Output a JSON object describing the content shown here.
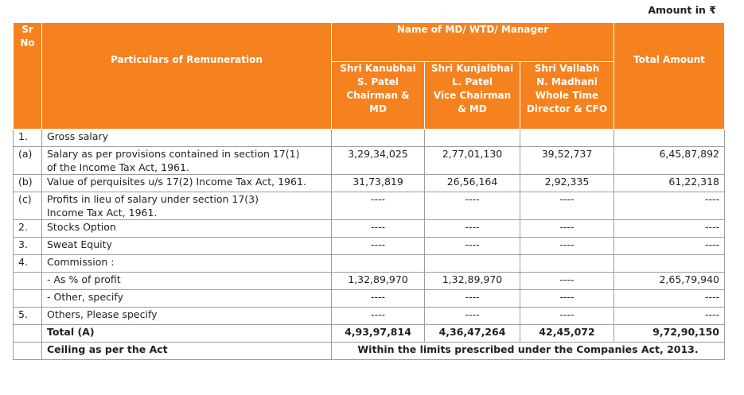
{
  "amount_note": "Amount in ₹",
  "header": {
    "sr_no": "Sr\nNo",
    "particulars": "Particulars of Remuneration",
    "group": "Name of MD/  WTD/ Manager",
    "total": "Total Amount",
    "names": [
      "Shri Kanubhai\nS. Patel\nChairman & MD",
      "Shri Kunjalbhai\nL. Patel\nVice Chairman\n& MD",
      "Shri Vallabh\nN. Madhani\nWhole Time\nDirector & CFO"
    ]
  },
  "rows": [
    {
      "sr": "1.",
      "particular": "Gross salary",
      "v1": "",
      "v2": "",
      "v3": "",
      "total": ""
    },
    {
      "sr": "(a)",
      "particular": "Salary as per provisions contained in section 17(1)\nof the Income Tax Act, 1961.",
      "v1": "3,29,34,025",
      "v2": "2,77,01,130",
      "v3": "39,52,737",
      "total": "6,45,87,892"
    },
    {
      "sr": "(b)",
      "particular": "Value of perquisites u/s 17(2) Income Tax Act, 1961.",
      "v1": "31,73,819",
      "v2": "26,56,164",
      "v3": "2,92,335",
      "total": "61,22,318"
    },
    {
      "sr": "(c)",
      "particular": "Profits in lieu of salary under section 17(3)\nIncome Tax Act, 1961.",
      "v1": "----",
      "v2": "----",
      "v3": "----",
      "total": "----"
    },
    {
      "sr": "2.",
      "particular": "Stocks  Option",
      "v1": "----",
      "v2": "----",
      "v3": "----",
      "total": "----"
    },
    {
      "sr": "3.",
      "particular": "Sweat Equity",
      "v1": "----",
      "v2": "----",
      "v3": "----",
      "total": "----"
    },
    {
      "sr": "4.",
      "particular": "Commission :",
      "v1": "",
      "v2": "",
      "v3": "",
      "total": ""
    },
    {
      "sr": "",
      "particular": "- As  % of profit",
      "v1": "1,32,89,970",
      "v2": "1,32,89,970",
      "v3": "----",
      "total": "2,65,79,940"
    },
    {
      "sr": "",
      "particular": "- Other, specify",
      "v1": "----",
      "v2": "----",
      "v3": "----",
      "total": "----"
    },
    {
      "sr": "5.",
      "particular": "Others, Please specify",
      "v1": "----",
      "v2": "----",
      "v3": "----",
      "total": "----"
    }
  ],
  "total_row": {
    "label": "Total (A)",
    "v1": "4,93,97,814",
    "v2": "4,36,47,264",
    "v3": "42,45,072",
    "total": "9,72,90,150"
  },
  "ceiling_row": {
    "label": "Ceiling as per the Act",
    "value": "Within the limits prescribed under the Companies Act, 2013."
  }
}
